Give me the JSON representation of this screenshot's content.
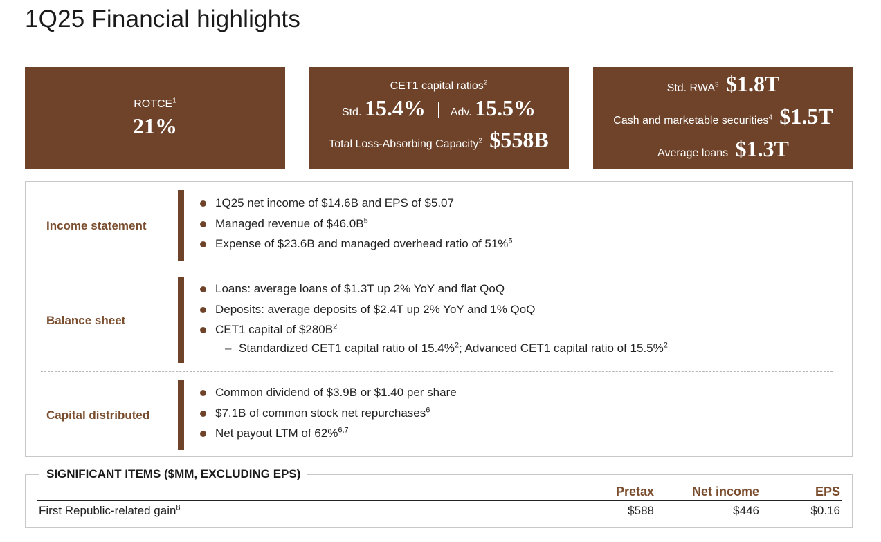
{
  "title": "1Q25 Financial highlights",
  "box1": {
    "label": "ROTCE",
    "label_sup": "1",
    "value": "21%"
  },
  "box2": {
    "line1": "CET1 capital ratios",
    "line1_sup": "2",
    "std_label": "Std.",
    "std_value": "15.4%",
    "adv_label": "Adv.",
    "adv_value": "15.5%",
    "tlac_label": "Total Loss-Absorbing Capacity",
    "tlac_sup": "2",
    "tlac_value": "$558B"
  },
  "box3": {
    "rwa_label": "Std. RWA",
    "rwa_sup": "3",
    "rwa_value": "$1.8T",
    "cash_label": "Cash and marketable securities",
    "cash_sup": "4",
    "cash_value": "$1.5T",
    "loans_label": "Average loans",
    "loans_value": "$1.3T"
  },
  "income": {
    "label": "Income statement",
    "b1": "1Q25 net income of $14.6B and EPS of $5.07",
    "b2": "Managed revenue of $46.0B",
    "b2_sup": "5",
    "b3": "Expense of $23.6B and managed overhead ratio of 51%",
    "b3_sup": "5"
  },
  "balance": {
    "label": "Balance sheet",
    "b1": "Loans: average loans of $1.3T up 2% YoY and flat QoQ",
    "b2": "Deposits: average deposits of $2.4T up 2% YoY and 1% QoQ",
    "b3": "CET1 capital of $280B",
    "b3_sup": "2",
    "dash": "–",
    "sub_a": "Standardized CET1 capital ratio of 15.4%",
    "sub_a_sup": "2",
    "sub_b": "; Advanced CET1 capital ratio of 15.5%",
    "sub_b_sup": "2"
  },
  "capital": {
    "label": "Capital distributed",
    "b1": "Common dividend of $3.9B or $1.40 per share",
    "b2": "$7.1B of common stock net repurchases",
    "b2_sup": "6",
    "b3": "Net payout LTM of 62%",
    "b3_sup": "6,7"
  },
  "significant": {
    "title": "SIGNIFICANT ITEMS ($MM, EXCLUDING EPS)",
    "col_pretax": "Pretax",
    "col_net": "Net income",
    "col_eps": "EPS",
    "row_label": "First Republic-related gain",
    "row_sup": "8",
    "pretax": "$588",
    "net": "$446",
    "eps": "$0.16"
  },
  "colors": {
    "brown": "#6e432a",
    "label_brown": "#7a4d2e"
  }
}
